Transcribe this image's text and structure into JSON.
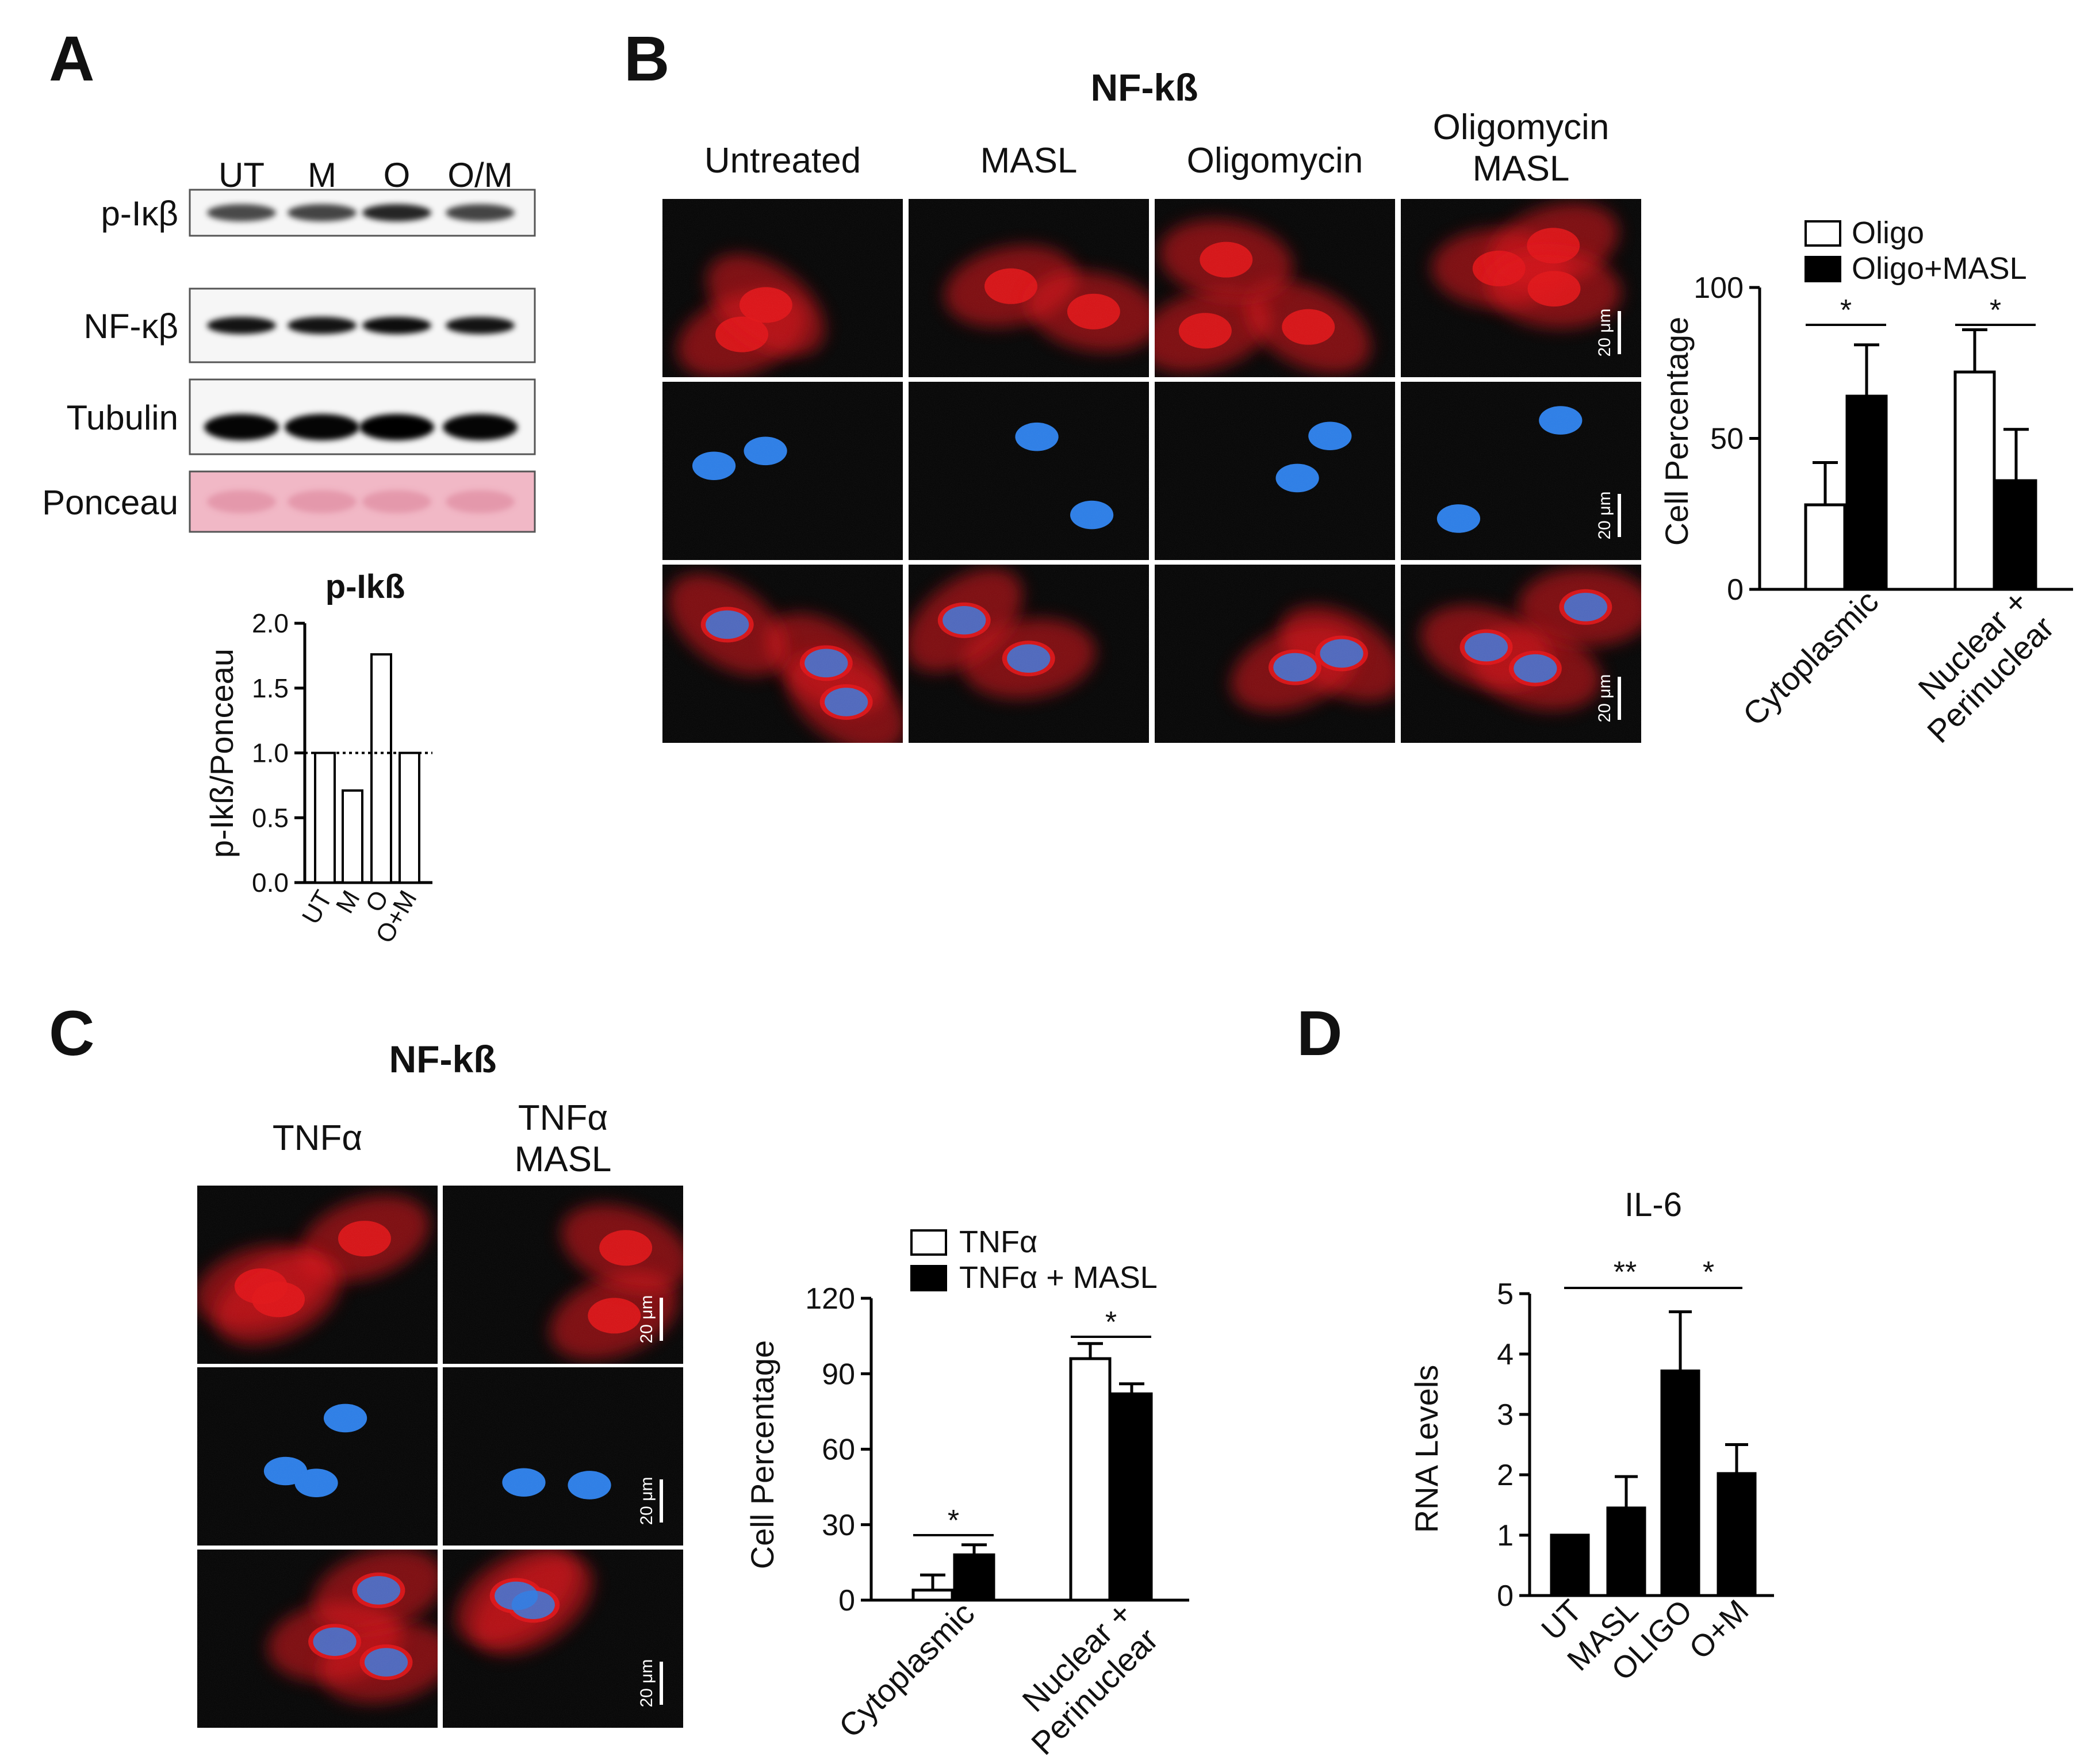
{
  "panel_labels": [
    "A",
    "B",
    "C",
    "D"
  ],
  "panel_a": {
    "lanes": [
      "UT",
      "M",
      "O",
      "O/M"
    ],
    "rows": [
      "p-Iκβ",
      "NF-κβ",
      "Tubulin",
      "Ponceau"
    ],
    "band_intensity": [
      [
        0.7,
        0.72,
        0.85,
        0.72
      ],
      [
        0.92,
        0.92,
        0.95,
        0.92
      ],
      [
        0.98,
        0.98,
        1.0,
        0.98
      ],
      [
        0.3,
        0.3,
        0.3,
        0.3
      ]
    ],
    "ponceau_color": "#f1b8c6"
  },
  "panel_b": {
    "title": "NF-kß",
    "columns": [
      "Untreated",
      "MASL",
      "Oligomycin",
      "Oligomycin\nMASL"
    ],
    "channels": [
      "nfkb-red",
      "nuclei-blue",
      "merge"
    ],
    "scale_bar_label": "20 μm",
    "red": "#e0181c",
    "blue": "#2f7fe6"
  },
  "panel_c": {
    "title": "NF-kß",
    "columns": [
      "TNFα",
      "TNFα\nMASL"
    ],
    "scale_bar_label": "20 μm"
  },
  "chart_data": [
    {
      "id": "pikb",
      "type": "bar",
      "title": "p-Ikß",
      "ylabel": "p-Ikß/Ponceau",
      "categories": [
        "UT",
        "M",
        "O",
        "O+M"
      ],
      "values": [
        1.0,
        0.71,
        1.76,
        1.0
      ],
      "ylim": [
        0,
        2.0
      ],
      "yticks": [
        0.0,
        0.5,
        1.0,
        1.5,
        2.0
      ],
      "tick_labels": [
        "0.0",
        "0.5",
        "1.0",
        "1.5",
        "2.0"
      ],
      "reference_line": 1.0,
      "bar_fill": "#ffffff"
    },
    {
      "id": "b_graph",
      "type": "bar",
      "ylabel": "Cell Percentage",
      "categories": [
        "Cytoplasmic",
        "Nuclear +\nPerinuclear"
      ],
      "series": [
        {
          "name": "Oligo",
          "values": [
            28,
            72
          ],
          "errors": [
            14,
            14
          ],
          "color": "#ffffff"
        },
        {
          "name": "Oligo+MASL",
          "values": [
            64,
            36
          ],
          "errors": [
            17,
            17
          ],
          "color": "#000000"
        }
      ],
      "ylim": [
        0,
        100
      ],
      "yticks": [
        0,
        50,
        100
      ],
      "significance": [
        "*",
        "*"
      ],
      "legend_position": "top"
    },
    {
      "id": "c_graph",
      "type": "bar",
      "ylabel": "Cell Percentage",
      "categories": [
        "Cytoplasmic",
        "Nuclear +\nPerinuclear"
      ],
      "series": [
        {
          "name": "TNFα",
          "values": [
            4,
            96
          ],
          "errors": [
            6,
            6
          ],
          "color": "#ffffff"
        },
        {
          "name": "TNFα + MASL",
          "values": [
            18,
            82
          ],
          "errors": [
            4,
            4
          ],
          "color": "#000000"
        }
      ],
      "ylim": [
        0,
        120
      ],
      "yticks": [
        0,
        30,
        60,
        90,
        120
      ],
      "significance": [
        "*",
        "*"
      ],
      "legend_position": "top"
    },
    {
      "id": "d_graph",
      "type": "bar",
      "title": "IL-6",
      "ylabel": "RNA Levels",
      "categories": [
        "UT",
        "MASL",
        "OLIGO",
        "O+M"
      ],
      "values": [
        1.0,
        1.45,
        3.72,
        2.02
      ],
      "errors": [
        0,
        0.52,
        0.98,
        0.48
      ],
      "ylim": [
        0,
        5
      ],
      "yticks": [
        0,
        1,
        2,
        3,
        4,
        5
      ],
      "bar_fill": "#000000",
      "significance": [
        {
          "from": 0,
          "to": 2,
          "label": "**"
        },
        {
          "from": 2,
          "to": 3,
          "label": "*"
        }
      ]
    }
  ]
}
